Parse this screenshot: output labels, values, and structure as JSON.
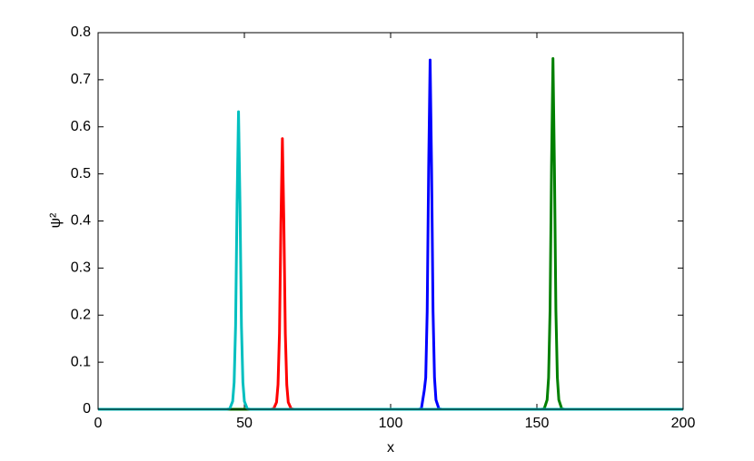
{
  "chart_data": {
    "type": "line",
    "xlabel": "x",
    "ylabel": "ψ²",
    "xlim": [
      0,
      200
    ],
    "xticks": [
      0,
      50,
      100,
      150,
      200
    ],
    "ylim": [
      0,
      0.8
    ],
    "yticks": [
      0,
      0.1,
      0.2,
      0.3,
      0.4,
      0.5,
      0.6,
      0.7,
      0.8
    ],
    "series": [
      {
        "color": "#ff0000",
        "x": [
          0,
          59,
          60,
          61,
          61.5,
          62,
          62.5,
          63,
          63.5,
          64,
          64.5,
          65,
          66,
          67,
          200
        ],
        "values": [
          0,
          0,
          0.001,
          0.015,
          0.052,
          0.161,
          0.397,
          0.575,
          0.397,
          0.161,
          0.052,
          0.015,
          0.001,
          0,
          0
        ]
      },
      {
        "color": "#0000ff",
        "x": [
          0,
          109.5,
          110.5,
          111.5,
          112,
          112.5,
          113,
          113.5,
          114,
          114.5,
          115,
          115.5,
          116.5,
          117.5,
          200
        ],
        "values": [
          0,
          0,
          0.001,
          0.04,
          0.067,
          0.208,
          0.512,
          0.742,
          0.512,
          0.208,
          0.067,
          0.02,
          0.001,
          0,
          0
        ]
      },
      {
        "color": "#008000",
        "x": [
          0,
          151.5,
          152.5,
          153.5,
          154,
          154.5,
          155,
          155.5,
          156,
          156.5,
          157,
          157.5,
          158.5,
          159.5,
          200
        ],
        "values": [
          0,
          0,
          0.001,
          0.02,
          0.067,
          0.209,
          0.514,
          0.745,
          0.514,
          0.209,
          0.067,
          0.02,
          0.001,
          0,
          0
        ]
      },
      {
        "color": "#00bfbf",
        "x": [
          0,
          44,
          45,
          46,
          46.5,
          47,
          47.5,
          48,
          48.5,
          49,
          49.5,
          50,
          51,
          52,
          200
        ],
        "values": [
          0,
          0,
          0.001,
          0.017,
          0.057,
          0.177,
          0.436,
          0.632,
          0.436,
          0.177,
          0.057,
          0.017,
          0.001,
          0,
          0
        ]
      }
    ]
  }
}
